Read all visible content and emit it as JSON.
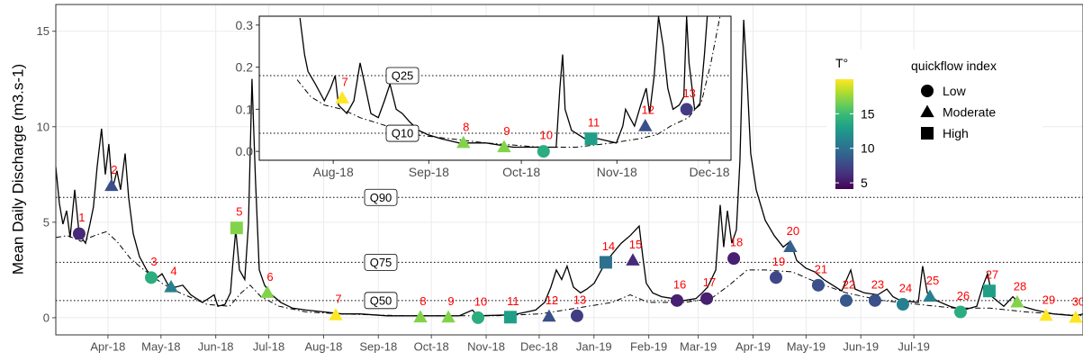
{
  "chart_data": [
    {
      "type": "line",
      "y_label": "Mean Daily Discharge (m3.s-1)",
      "xlim": [
        -29.5,
        551.7
      ],
      "xticks": [
        {
          "value": 0,
          "label": "Apr-18"
        },
        {
          "value": 30,
          "label": "May-18"
        },
        {
          "value": 61,
          "label": "Jun-18"
        },
        {
          "value": 91,
          "label": "Jul-18"
        },
        {
          "value": 122,
          "label": "Aug-18"
        },
        {
          "value": 153,
          "label": "Sep-18"
        },
        {
          "value": 183,
          "label": "Oct-18"
        },
        {
          "value": 214,
          "label": "Nov-18"
        },
        {
          "value": 244,
          "label": "Dec-18"
        },
        {
          "value": 275,
          "label": "Jan-19"
        },
        {
          "value": 306,
          "label": "Feb-19"
        },
        {
          "value": 334,
          "label": "Mar-19"
        },
        {
          "value": 365,
          "label": "Apr-19"
        },
        {
          "value": 395,
          "label": "May-19"
        },
        {
          "value": 426,
          "label": "Jun-19"
        },
        {
          "value": 456,
          "label": "Jul-19"
        }
      ],
      "ylim": [
        -0.9,
        16.4
      ],
      "yticks": [
        0,
        5,
        10,
        15
      ],
      "grid": true,
      "series": [
        {
          "style": "solid",
          "color": "#000000",
          "x": [
            -29.5,
            -27.5,
            -25.5,
            -23.4,
            -21.4,
            -18.8,
            -16.3,
            -12.7,
            -10.2,
            -8.2,
            -6.1,
            -3.6,
            -1.5,
            0.5,
            2.5,
            5.1,
            7.1,
            9.7,
            11.7,
            14.3,
            17.8,
            21.9,
            26.5,
            30.6,
            34.1,
            38.2,
            42.3,
            46.9,
            53.5,
            60.1,
            62.2,
            66.2,
            69.3,
            70.8,
            72.3,
            74.4,
            77.4,
            79.5,
            81.5,
            83.5,
            85.6,
            88.6,
            92.7,
            97.8,
            104.4,
            112.1,
            122.3,
            132.5,
            142.6,
            157.9,
            178.3,
            198.7,
            206.3,
            208.9,
            229.2,
            242.0,
            247.1,
            250.6,
            253.7,
            256.7,
            259.8,
            263.4,
            267.4,
            271.0,
            275.1,
            279.2,
            283.2,
            290.4,
            295.5,
            300.6,
            302.6,
            304.6,
            308.2,
            313.3,
            319.9,
            326.0,
            332.7,
            336.2,
            339.3,
            343.9,
            346.4,
            348.4,
            350.5,
            353.0,
            355.6,
            357.6,
            359.7,
            361.7,
            363.7,
            366.8,
            371.9,
            377.0,
            382.1,
            386.1,
            389.7,
            394.8,
            399.9,
            405.0,
            410.1,
            415.2,
            420.3,
            422.8,
            427.9,
            435.6,
            440.7,
            444.2,
            448.3,
            458.5,
            461.0,
            463.6,
            468.7,
            476.3,
            483.9,
            491.6,
            495.2,
            497.7,
            500.3,
            506.9,
            512.0,
            517.1,
            524.7,
            534.9,
            547.6,
            551.7
          ],
          "values": [
            7.9,
            6.0,
            4.9,
            5.6,
            4.2,
            6.7,
            4.4,
            3.9,
            4.9,
            5.8,
            7.9,
            9.9,
            7.5,
            9.1,
            6.7,
            7.7,
            6.7,
            8.6,
            6.3,
            4.4,
            3.2,
            2.5,
            2.0,
            2.3,
            1.7,
            1.6,
            1.7,
            1.2,
            0.8,
            1.2,
            0.6,
            0.7,
            1.3,
            3.0,
            4.6,
            2.5,
            2.0,
            4.9,
            12.5,
            7.2,
            2.5,
            1.7,
            1.2,
            0.8,
            0.5,
            0.4,
            0.3,
            0.2,
            0.2,
            0.1,
            0.1,
            0.1,
            0.4,
            0.1,
            0.15,
            0.4,
            0.8,
            1.6,
            2.5,
            2.0,
            2.7,
            1.6,
            1.3,
            1.5,
            1.8,
            2.5,
            3.1,
            3.9,
            4.3,
            4.8,
            3.2,
            1.8,
            1.3,
            1.1,
            1.0,
            0.9,
            1.0,
            1.3,
            1.6,
            2.5,
            5.9,
            3.7,
            5.6,
            3.9,
            4.6,
            8.2,
            15.6,
            12.4,
            8.6,
            6.7,
            5.1,
            4.3,
            3.7,
            4.0,
            3.0,
            2.6,
            2.4,
            2.0,
            1.7,
            1.4,
            2.5,
            1.5,
            1.3,
            1.2,
            1.5,
            1.1,
            0.9,
            0.8,
            2.7,
            1.3,
            0.9,
            0.6,
            0.4,
            0.6,
            1.7,
            2.3,
            1.1,
            0.6,
            1.1,
            0.6,
            0.4,
            0.2,
            0.1,
            0.2
          ]
        },
        {
          "style": "dashdot",
          "color": "#000000",
          "x": [
            -29.5,
            -22.9,
            -15.3,
            -7.6,
            -1.0,
            5.1,
            12.7,
            20.4,
            30.6,
            40.8,
            56.0,
            68.8,
            75.4,
            80.5,
            86.6,
            96.8,
            112.1,
            132.5,
            168.1,
            219.1,
            244.5,
            264.9,
            285.3,
            295.5,
            305.7,
            326.0,
            341.3,
            351.5,
            361.7,
            371.9,
            387.2,
            402.4,
            417.7,
            438.1,
            458.5,
            478.9,
            499.2,
            519.6,
            551.7
          ],
          "values": [
            4.2,
            4.3,
            4.0,
            4.3,
            4.5,
            4.0,
            3.1,
            2.5,
            1.8,
            1.3,
            0.7,
            0.6,
            1.3,
            1.7,
            1.1,
            0.6,
            0.3,
            0.2,
            0.1,
            0.1,
            0.2,
            0.5,
            0.8,
            1.2,
            0.8,
            0.8,
            1.0,
            1.7,
            2.5,
            2.5,
            2.4,
            1.8,
            1.3,
            0.9,
            0.7,
            0.5,
            0.5,
            0.3,
            0.1
          ]
        }
      ],
      "reference_lines": [
        {
          "label": "Q90",
          "value": 6.3
        },
        {
          "label": "Q75",
          "value": 2.9
        },
        {
          "label": "Q50",
          "value": 0.9
        }
      ],
      "points": {
        "labels": [
          1,
          2,
          3,
          4,
          5,
          6,
          7,
          8,
          9,
          10,
          11,
          12,
          13,
          14,
          15,
          16,
          17,
          18,
          19,
          20,
          21,
          22,
          23,
          24,
          25,
          26,
          27,
          28,
          29,
          30
        ],
        "x": [
          -16.3,
          2.0,
          24.5,
          35.7,
          72.8,
          90.2,
          128.9,
          176.8,
          192.6,
          209.4,
          227.7,
          249.6,
          265.4,
          281.7,
          297.0,
          322.0,
          338.8,
          354.1,
          378.0,
          386.1,
          401.9,
          417.7,
          434.0,
          449.8,
          465.1,
          482.4,
          498.7,
          514.5,
          530.8,
          547.6
        ],
        "values": [
          4.4,
          6.9,
          2.1,
          1.6,
          4.7,
          1.3,
          0.13,
          0.02,
          0.01,
          0.0,
          0.03,
          0.06,
          0.1,
          2.9,
          3.0,
          0.9,
          1.0,
          3.1,
          2.1,
          3.7,
          1.7,
          0.9,
          0.9,
          0.7,
          1.1,
          0.3,
          1.4,
          0.8,
          0.1,
          0.0
        ],
        "temperature": [
          6,
          8,
          14,
          11,
          17,
          17,
          20,
          17,
          17,
          14,
          13,
          8,
          7,
          10,
          6,
          5.5,
          5.5,
          5.5,
          7.5,
          9,
          8,
          8.5,
          8,
          11,
          11,
          14,
          13,
          17,
          20,
          20
        ],
        "quickflow": [
          0,
          1,
          0,
          1,
          2,
          1,
          1,
          1,
          1,
          0,
          2,
          1,
          0,
          2,
          1,
          0,
          0,
          0,
          0,
          1,
          0,
          0,
          0,
          0,
          1,
          0,
          2,
          1,
          1,
          1
        ]
      },
      "label_color": "#ff0000",
      "color_legend": {
        "title": "T°",
        "ticks": [
          5,
          10,
          15
        ],
        "lim": [
          4.1,
          20
        ],
        "colors": [
          "#440154",
          "#482878",
          "#3e4989",
          "#31688e",
          "#26828e",
          "#1f9e89",
          "#35b779",
          "#6ece58",
          "#b5de2b",
          "#fde725"
        ]
      },
      "shape_legend": {
        "title": "quickflow index",
        "labels": [
          "Low",
          "Moderate",
          "High"
        ]
      }
    },
    {
      "type": "line",
      "xlim": [
        98,
        251
      ],
      "xticks": [
        {
          "value": 122,
          "label": "Aug-18"
        },
        {
          "value": 153,
          "label": "Sep-18"
        },
        {
          "value": 183,
          "label": "Oct-18"
        },
        {
          "value": 214,
          "label": "Nov-18"
        },
        {
          "value": 244,
          "label": "Dec-18"
        }
      ],
      "ylim": [
        -0.021,
        0.321
      ],
      "yticks": [
        {
          "value": 0,
          "label": "0.0"
        },
        {
          "value": 0.1,
          "label": "0.1"
        },
        {
          "value": 0.2,
          "label": "0.2"
        },
        {
          "value": 0.3,
          "label": "0.3"
        }
      ],
      "grid": false,
      "series": [
        {
          "style": "solid",
          "color": "#000000",
          "x": [
            111.2,
            112.7,
            113.8,
            116.2,
            119.1,
            121.1,
            122.6,
            123.7,
            126.4,
            128.7,
            130.7,
            132.2,
            134.2,
            136.6,
            138.6,
            140.4,
            142.4,
            144.4,
            146.8,
            149.7,
            152.6,
            157.0,
            162.8,
            171.6,
            180.3,
            189.1,
            194.3,
            195.5,
            196.4,
            197.2,
            199.3,
            203.6,
            208.0,
            213.8,
            215.9,
            216.8,
            218.2,
            219.7,
            221.7,
            223.5,
            224.6,
            226.1,
            227.5,
            229.0,
            230.5,
            232.2,
            234.2,
            235.7,
            236.6,
            237.4,
            239.2,
            240.9,
            242.4,
            243.3
          ],
          "values": [
            0.317,
            0.23,
            0.19,
            0.16,
            0.12,
            0.15,
            0.18,
            0.11,
            0.09,
            0.12,
            0.21,
            0.16,
            0.09,
            0.08,
            0.12,
            0.16,
            0.1,
            0.09,
            0.07,
            0.05,
            0.04,
            0.03,
            0.02,
            0.02,
            0.01,
            0.01,
            0.01,
            0.15,
            0.23,
            0.1,
            0.05,
            0.03,
            0.03,
            0.02,
            0.06,
            0.1,
            0.08,
            0.06,
            0.11,
            0.15,
            0.09,
            0.18,
            0.32,
            0.25,
            0.15,
            0.1,
            0.11,
            0.13,
            0.32,
            0.21,
            0.1,
            0.11,
            0.23,
            0.32
          ]
        },
        {
          "style": "dashdot",
          "color": "#000000",
          "x": [
            110.3,
            114.7,
            119.1,
            124.9,
            130.7,
            139.5,
            148.2,
            159.9,
            171.6,
            189.1,
            200.8,
            212.4,
            221.2,
            227.0,
            231.4,
            237.2,
            241.5,
            244.5,
            247.4
          ],
          "values": [
            0.17,
            0.13,
            0.11,
            0.1,
            0.08,
            0.06,
            0.04,
            0.03,
            0.02,
            0.01,
            0.01,
            0.02,
            0.03,
            0.04,
            0.06,
            0.08,
            0.12,
            0.21,
            0.32
          ]
        }
      ],
      "reference_lines": [
        {
          "label": "Q25",
          "value": 0.18
        },
        {
          "label": "Q10",
          "value": 0.043
        }
      ],
      "points": {
        "labels": [
          7,
          8,
          9,
          10,
          11,
          12,
          13
        ],
        "x": [
          124.9,
          164.2,
          177.4,
          190.2,
          205.6,
          223.2,
          236.6
        ],
        "values": [
          0.126,
          0.02,
          0.01,
          0.0,
          0.03,
          0.06,
          0.1
        ],
        "temperature": [
          20,
          17,
          17,
          14,
          13,
          8,
          7
        ],
        "quickflow": [
          1,
          1,
          1,
          0,
          2,
          1,
          0
        ]
      }
    }
  ]
}
